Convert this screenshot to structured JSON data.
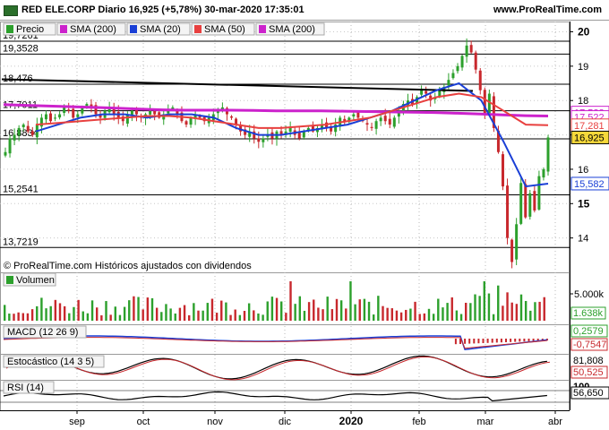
{
  "header": {
    "title": "RED ELE.CORP Diario 16,925 (+5,78%) 30-mar-2020 17:35:01",
    "site": "www.ProRealTime.com"
  },
  "colors": {
    "up": "#2ca02c",
    "down": "#c8282d",
    "sma200": "#cc22cc",
    "sma20": "#1a3fd6",
    "sma50": "#e8403f",
    "trend": "#000000",
    "last_price_bg": "#f5d83a"
  },
  "legend": [
    {
      "label": "Precio",
      "color": "#2ca02c"
    },
    {
      "label": "SMA (200)",
      "color": "#cc22cc"
    },
    {
      "label": "SMA (20)",
      "color": "#1a3fd6"
    },
    {
      "label": "SMA (50)",
      "color": "#e8403f"
    },
    {
      "label": "SMA (200)",
      "color": "#cc22cc"
    }
  ],
  "copyright": "© ProRealTime.com  Históricos ajustados con dividendos",
  "chart_data": [
    {
      "type": "line",
      "panel": "price",
      "ylim": [
        13.0,
        20.3
      ],
      "y_ticks": [
        "20",
        "19",
        "18",
        "17",
        "16",
        "15",
        "14"
      ],
      "x_months": [
        "sep",
        "oct",
        "nov",
        "dic",
        "2020",
        "feb",
        "mar",
        "abr"
      ],
      "levels": [
        {
          "value": 19.7261,
          "label": "19,7261"
        },
        {
          "value": 19.3528,
          "label": "19,3528"
        },
        {
          "value": 18.476,
          "label": "18,476"
        },
        {
          "value": 17.7011,
          "label": "17,7011"
        },
        {
          "value": 16.8834,
          "label": "16,8834"
        },
        {
          "value": 15.2541,
          "label": "15,2541"
        },
        {
          "value": 13.7219,
          "label": "13,7219"
        }
      ],
      "price_close_series": [
        16.5,
        16.9,
        17.0,
        17.2,
        17.3,
        17.1,
        17.0,
        17.3,
        17.5,
        17.6,
        17.4,
        17.5,
        17.6,
        17.8,
        17.7,
        17.5,
        17.6,
        17.8,
        17.9,
        17.8,
        17.6,
        17.5,
        17.7,
        17.8,
        17.6,
        17.5,
        17.4,
        17.6,
        17.7,
        17.6,
        17.5,
        17.6,
        17.7,
        17.6,
        17.5,
        17.6,
        17.7,
        17.8,
        17.6,
        17.4,
        17.3,
        17.5,
        17.6,
        17.5,
        17.4,
        17.5,
        17.6,
        17.7,
        17.8,
        17.6,
        17.5,
        17.3,
        17.1,
        17.0,
        17.1,
        16.9,
        16.8,
        16.9,
        17.0,
        16.9,
        17.1,
        17.0,
        17.1,
        17.2,
        17.0,
        16.9,
        17.1,
        17.2,
        17.1,
        17.2,
        17.3,
        17.2,
        17.1,
        17.3,
        17.5,
        17.4,
        17.5,
        17.6,
        17.5,
        17.4,
        17.3,
        17.2,
        17.4,
        17.5,
        17.4,
        17.3,
        17.5,
        17.7,
        17.9,
        18.0,
        17.9,
        18.1,
        18.3,
        18.2,
        18.0,
        18.1,
        18.3,
        18.4,
        18.6,
        18.8,
        19.0,
        19.3,
        19.6,
        19.4,
        18.9,
        18.3,
        17.6,
        18.2,
        17.2,
        16.5,
        15.5,
        14.0,
        13.3,
        14.4,
        15.6,
        14.6,
        15.3,
        14.8,
        15.8,
        16.0,
        16.925
      ],
      "sma_series": [
        {
          "name": "SMA (200)",
          "values": [
            17.88,
            17.86,
            17.84,
            17.82,
            17.8,
            17.78,
            17.75,
            17.73,
            17.72,
            17.72,
            17.72,
            17.71,
            17.7,
            17.7,
            17.7,
            17.69,
            17.68,
            17.67,
            17.66,
            17.65,
            17.63,
            17.61,
            17.58,
            17.56,
            17.55
          ],
          "last": 17.522,
          "last_label": "17,522"
        },
        {
          "name": "SMA (20)",
          "values": [
            17.1,
            17.3,
            17.5,
            17.6,
            17.6,
            17.5,
            17.6,
            17.6,
            17.5,
            17.2,
            17.0,
            17.0,
            17.1,
            17.2,
            17.3,
            17.5,
            17.7,
            18.0,
            18.3,
            18.5,
            18.0,
            16.8,
            15.5,
            15.582
          ],
          "last": 15.582,
          "last_label": "15,582"
        },
        {
          "name": "SMA (50)",
          "values": [
            17.3,
            17.35,
            17.4,
            17.45,
            17.5,
            17.55,
            17.55,
            17.5,
            17.4,
            17.3,
            17.2,
            17.2,
            17.25,
            17.3,
            17.4,
            17.5,
            17.7,
            17.9,
            18.1,
            18.2,
            18.1,
            17.7,
            17.3,
            17.281
          ],
          "last": 17.281,
          "last_label": "17,281"
        }
      ],
      "last_price": 16.925,
      "last_price_label": "16,925",
      "hidden_label": "17,522"
    },
    {
      "type": "bar",
      "panel": "volume",
      "title": "Volumen",
      "y_ticks": [
        "5.000k"
      ],
      "last_label": "1.638k"
    },
    {
      "type": "line",
      "panel": "macd",
      "title": "MACD (12 26 9)",
      "values_labels": [
        "0,2579",
        "-0,7547"
      ]
    },
    {
      "type": "line",
      "panel": "stochastic",
      "title": "Estocástico (14 3 5)",
      "values_labels": [
        "81,808",
        "50,525"
      ]
    },
    {
      "type": "line",
      "panel": "rsi",
      "title": "RSI (14)",
      "values_labels": [
        "100",
        "56,650"
      ]
    }
  ]
}
